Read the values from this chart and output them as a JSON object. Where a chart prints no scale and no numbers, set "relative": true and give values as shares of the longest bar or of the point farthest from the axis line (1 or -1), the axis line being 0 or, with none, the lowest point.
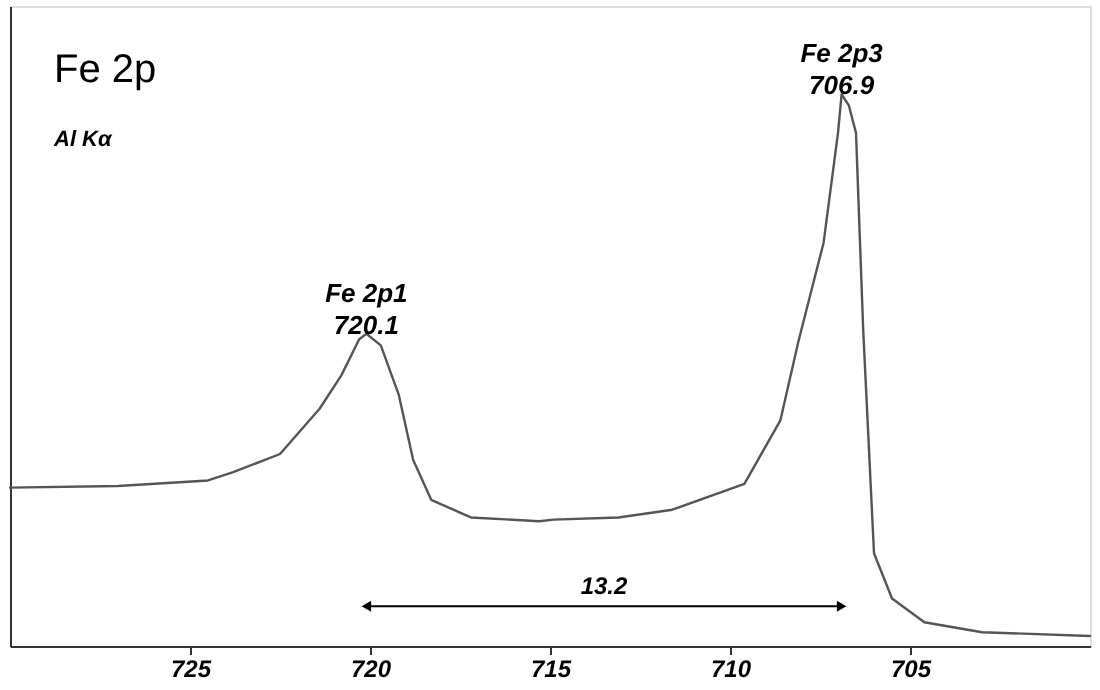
{
  "chart_data": {
    "type": "line",
    "title": "Fe 2p",
    "subtitle": "Al Kα",
    "relative": true,
    "xlim": [
      730,
      700
    ],
    "xticks": [
      725,
      720,
      715,
      710,
      705
    ],
    "grid": false,
    "marker": "none",
    "line_style": "solid",
    "series": [
      {
        "color": "#555555",
        "x": [
          730,
          727,
          724.5,
          723.8,
          722.5,
          721.4,
          720.8,
          720.3,
          720.1,
          719.7,
          719.2,
          718.8,
          718.3,
          717.2,
          715.3,
          714.9,
          713.1,
          711.6,
          709.6,
          708.6,
          708.1,
          707.4,
          707.0,
          706.9,
          706.7,
          706.5,
          706.3,
          706.0,
          705.5,
          704.6,
          703.0,
          700
        ],
        "values": [
          0.287,
          0.29,
          0.3,
          0.315,
          0.348,
          0.43,
          0.49,
          0.556,
          0.566,
          0.545,
          0.455,
          0.337,
          0.265,
          0.233,
          0.226,
          0.229,
          0.233,
          0.247,
          0.294,
          0.409,
          0.552,
          0.731,
          0.93,
          1.0,
          0.98,
          0.93,
          0.573,
          0.168,
          0.086,
          0.043,
          0.025,
          0.018
        ]
      },
      {
        "type": "line",
        "color": "#000000",
        "marker": "triangle",
        "x": [
          720.1,
          706.9
        ],
        "values": [
          0.072,
          0.072
        ]
      }
    ],
    "annotations": [
      {
        "text": "Fe 2p1\n720.1",
        "x": 720.1,
        "y": 0.566
      },
      {
        "text": "Fe 2p3\n706.9",
        "x": 706.9,
        "y": 1.0
      },
      {
        "text": "13.2",
        "x": 713.5,
        "y": 0.072
      }
    ]
  }
}
